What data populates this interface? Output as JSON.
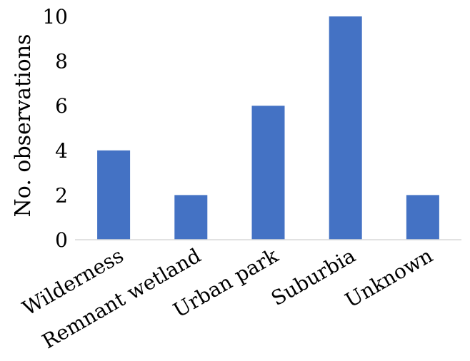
{
  "chart_data": {
    "type": "bar",
    "title": "",
    "xlabel": "",
    "ylabel": "No. observations",
    "categories": [
      "Wilderness",
      "Remnant wetland",
      "Urban park",
      "Suburbia",
      "Unknown"
    ],
    "values": [
      4,
      2,
      6,
      10,
      2
    ],
    "ylim": [
      0,
      10
    ],
    "yticks": [
      "0",
      "2",
      "4",
      "6",
      "8",
      "10"
    ],
    "bar_color": "#4472C4",
    "grid": false,
    "legend": "none"
  }
}
